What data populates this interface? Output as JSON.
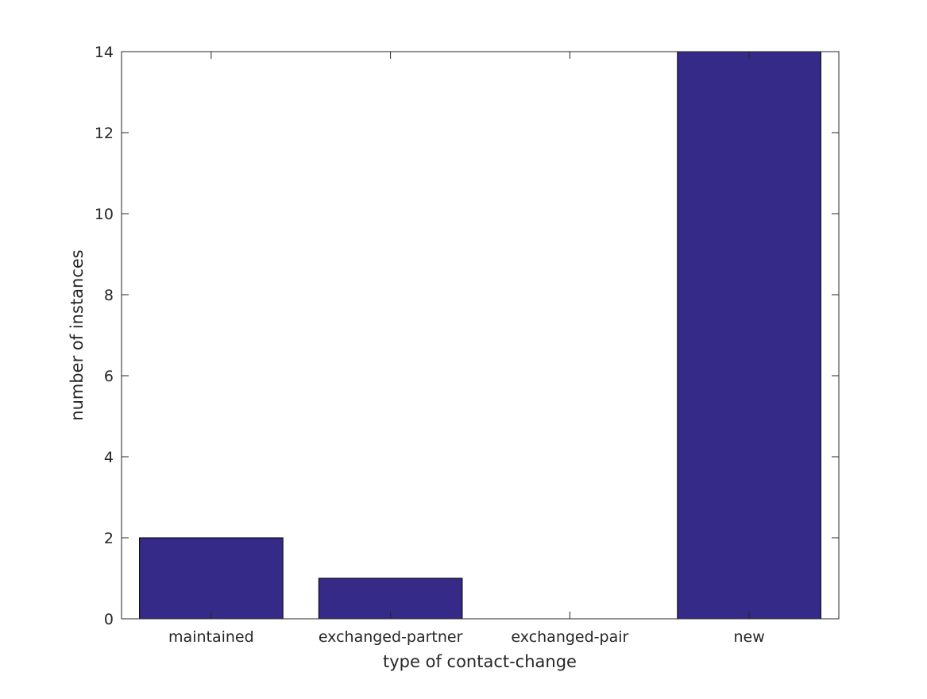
{
  "chart_data": {
    "type": "bar",
    "categories": [
      "maintained",
      "exchanged-partner",
      "exchanged-pair",
      "new"
    ],
    "values": [
      2,
      1,
      0,
      14
    ],
    "title": "",
    "xlabel": "type of contact-change",
    "ylabel": "number of instances",
    "ylim": [
      0,
      14
    ],
    "yticks": [
      0,
      2,
      4,
      6,
      8,
      10,
      12,
      14
    ],
    "grid": false,
    "bar_color": "#352a87"
  }
}
